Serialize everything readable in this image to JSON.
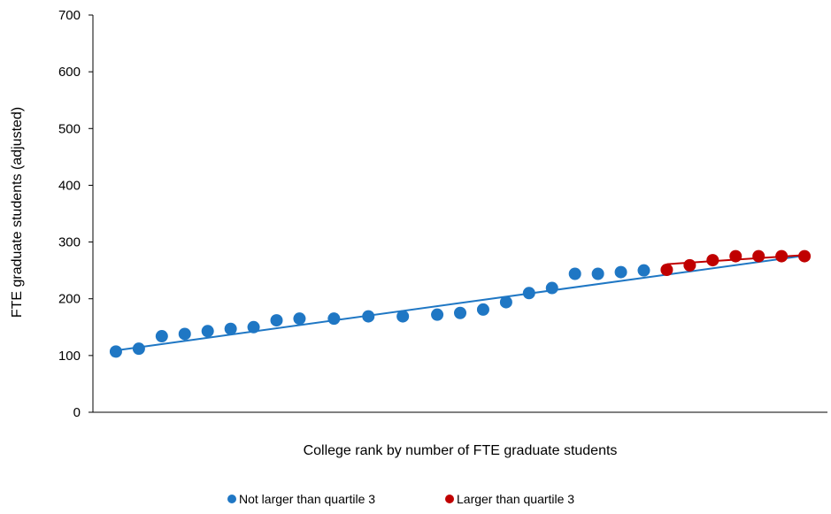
{
  "chart_data": {
    "type": "scatter",
    "title": "",
    "xlabel": "College rank by number of FTE graduate students",
    "ylabel": "FTE graduate students (adjusted)",
    "ylim": [
      0,
      700
    ],
    "yticks": [
      0,
      100,
      200,
      300,
      400,
      500,
      600,
      700
    ],
    "grid": false,
    "legend_position": "bottom",
    "series": [
      {
        "name": "Not larger than quartile 3",
        "color": "#1f77c4",
        "x": [
          1,
          2,
          3,
          4,
          5,
          6,
          7,
          8,
          9,
          10.5,
          12,
          13.5,
          15,
          16,
          17,
          18,
          19,
          20,
          21,
          22,
          23,
          24
        ],
        "y": [
          107,
          112,
          134,
          138,
          143,
          147,
          150,
          162,
          165,
          165,
          169,
          169,
          172,
          175,
          181,
          194,
          210,
          219,
          244,
          244,
          247,
          250
        ]
      },
      {
        "name": "Larger than quartile 3",
        "color": "#c00000",
        "x": [
          25,
          26,
          27,
          28,
          29,
          30,
          31
        ],
        "y": [
          251,
          259,
          268,
          275,
          275,
          275,
          275
        ]
      }
    ],
    "trendlines": [
      {
        "color": "#1f77c4",
        "x": [
          1,
          31
        ],
        "y": [
          109,
          276
        ]
      },
      {
        "color": "#c00000",
        "x": [
          25,
          31
        ],
        "y": [
          261,
          277
        ]
      }
    ]
  },
  "legend": {
    "items": [
      {
        "label": "Not larger than quartile 3",
        "color": "#1f77c4"
      },
      {
        "label": "Larger than quartile 3",
        "color": "#c00000"
      }
    ]
  }
}
